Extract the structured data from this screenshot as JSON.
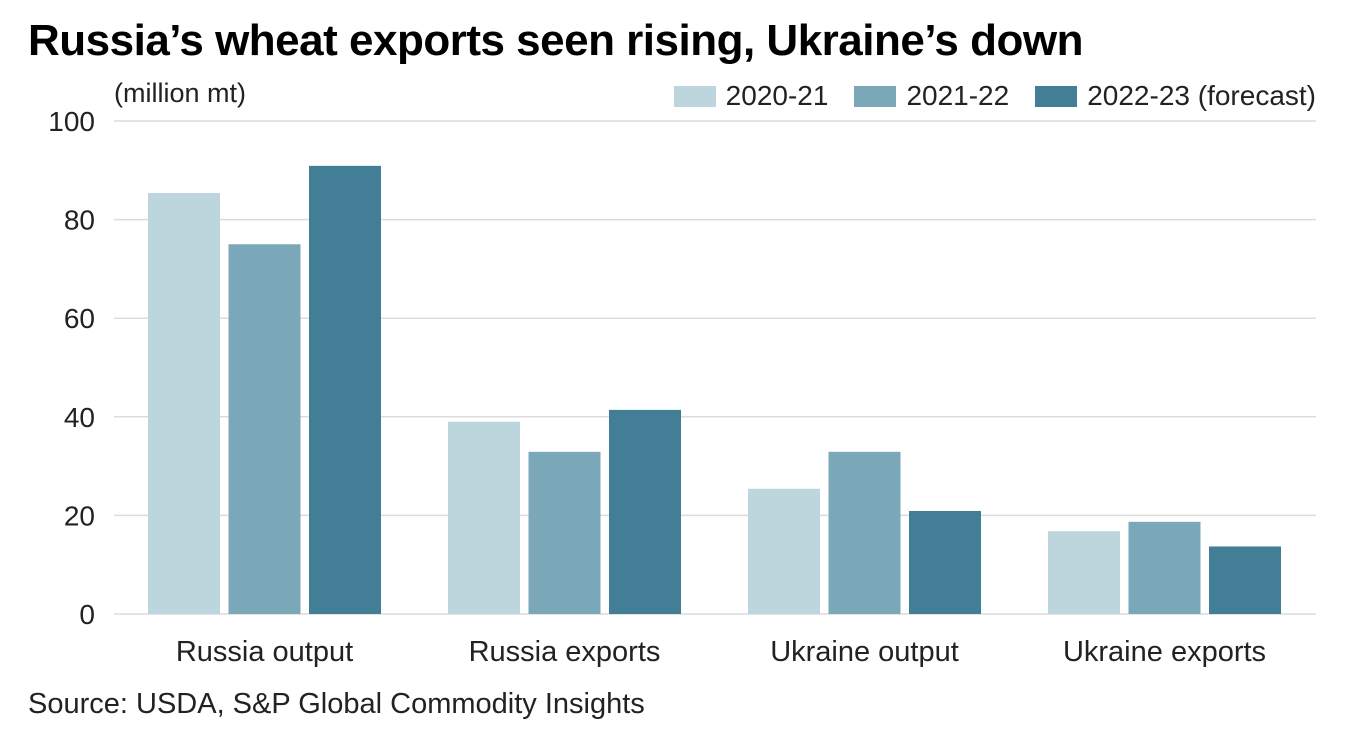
{
  "chart_data": {
    "type": "bar",
    "title": "Russia’s wheat exports seen rising, Ukraine’s down",
    "ylabel": "(million mt)",
    "xlabel": "",
    "ylim": [
      0,
      100
    ],
    "yticks": [
      0,
      20,
      40,
      60,
      80,
      100
    ],
    "grid": true,
    "legend_position": "top-right",
    "categories": [
      "Russia output",
      "Russia exports",
      "Ukraine output",
      "Ukraine exports"
    ],
    "series": [
      {
        "name": "2020-21",
        "color": "#bdd5dd",
        "values": [
          85.4,
          39.0,
          25.4,
          16.8
        ]
      },
      {
        "name": "2021-22",
        "color": "#7ba8b8",
        "values": [
          75.0,
          32.9,
          32.9,
          18.7
        ]
      },
      {
        "name": "2022-23 (forecast)",
        "color": "#427f97",
        "values": [
          90.9,
          41.4,
          20.9,
          13.7
        ]
      }
    ],
    "source": "Source: USDA, S&P Global Commodity Insights"
  }
}
